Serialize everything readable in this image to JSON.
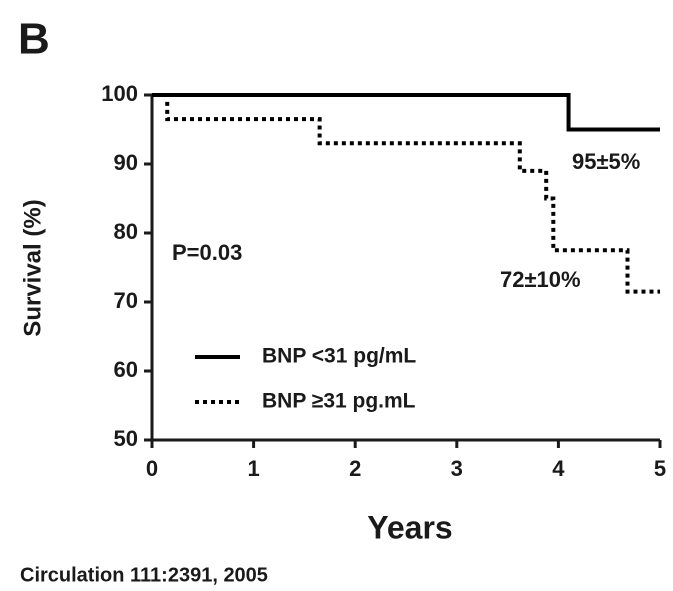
{
  "chart_data": {
    "type": "step-line",
    "panel_label": "B",
    "x_label": "Years",
    "y_label": "Survival (%)",
    "xlim": [
      0,
      5
    ],
    "xticks": [
      0,
      1,
      2,
      3,
      4,
      5
    ],
    "ylim": [
      50,
      100
    ],
    "yticks": [
      50,
      60,
      70,
      80,
      90,
      100
    ],
    "legend": "lower-left",
    "series": [
      {
        "name": "BNP <31 pg/mL",
        "color": "#000000",
        "line_style": "solid",
        "x": [
          0,
          4.1,
          4.1,
          5
        ],
        "values": [
          100,
          100,
          95,
          95
        ]
      },
      {
        "name": "BNP ≥31 pg.mL",
        "color": "#000000",
        "line_style": "dotted",
        "x": [
          0.15,
          0.15,
          1.65,
          1.65,
          3.62,
          3.62,
          3.88,
          3.88,
          3.95,
          3.95,
          4.68,
          4.68,
          5
        ],
        "values": [
          99,
          96.5,
          96.5,
          93,
          93,
          89,
          89,
          85,
          85,
          77.5,
          77.5,
          71.5,
          71.5
        ]
      }
    ],
    "annotations": [
      "P=0.03",
      "95±5%",
      "72±10%"
    ],
    "source": "Circulation 111:2391, 2005"
  }
}
